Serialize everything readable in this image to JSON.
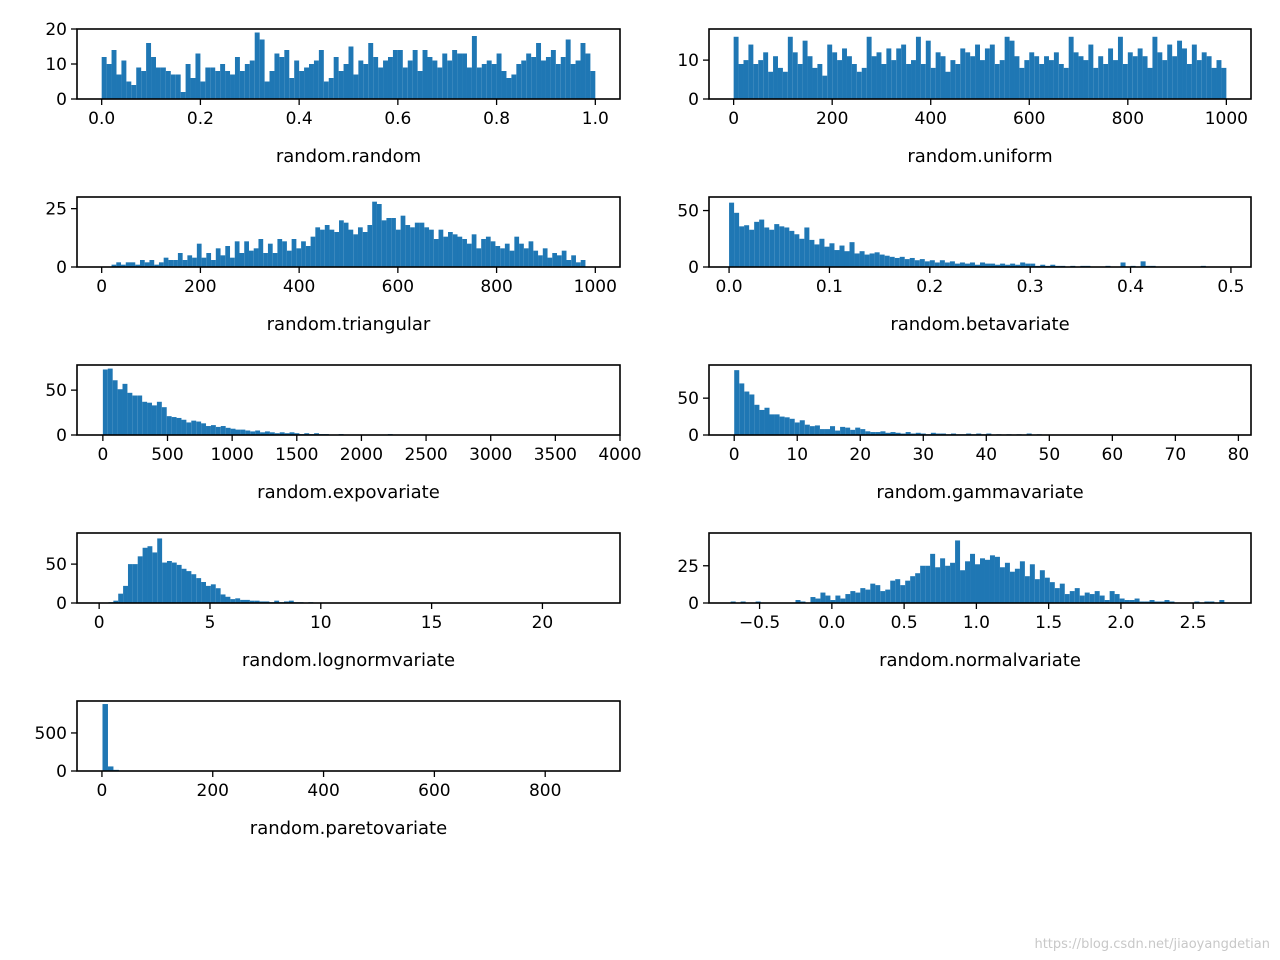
{
  "figure": {
    "watermark": "https://blog.csdn.net/jiaoyangdetian",
    "bar_color": "#1f77b4"
  },
  "chart_data": [
    {
      "type": "bar",
      "xlabel": "random.random",
      "xlim": [
        -0.05,
        1.05
      ],
      "ylim": [
        0,
        20
      ],
      "xticks": [
        0.0,
        0.2,
        0.4,
        0.6,
        0.8,
        1.0
      ],
      "xtick_labels": [
        "0.0",
        "0.2",
        "0.4",
        "0.6",
        "0.8",
        "1.0"
      ],
      "yticks": [
        0,
        10,
        20
      ],
      "ytick_labels": [
        "0",
        "10",
        "20"
      ],
      "bin_range": [
        0.0,
        1.0
      ],
      "counts": [
        12,
        10,
        14,
        7,
        11,
        5,
        4,
        9,
        8,
        16,
        12,
        9,
        9,
        8,
        7,
        7,
        2,
        10,
        6,
        13,
        5,
        9,
        9,
        8,
        10,
        8,
        7,
        12,
        8,
        10,
        11,
        19,
        17,
        5,
        8,
        13,
        12,
        14,
        6,
        11,
        8,
        9,
        10,
        11,
        14,
        5,
        6,
        12,
        8,
        10,
        15,
        7,
        11,
        10,
        16,
        12,
        9,
        11,
        12,
        14,
        14,
        9,
        11,
        14,
        8,
        14,
        12,
        11,
        9,
        13,
        11,
        14,
        13,
        13,
        9,
        18,
        9,
        10,
        11,
        10,
        13,
        8,
        6,
        7,
        10,
        11,
        13,
        12,
        16,
        11,
        12,
        14,
        10,
        12,
        17,
        10,
        11,
        16,
        13,
        8
      ]
    },
    {
      "type": "bar",
      "xlabel": "random.uniform",
      "xlim": [
        -50,
        1050
      ],
      "ylim": [
        0,
        18
      ],
      "xticks": [
        0,
        200,
        400,
        600,
        800,
        1000
      ],
      "xtick_labels": [
        "0",
        "200",
        "400",
        "600",
        "800",
        "1000"
      ],
      "yticks": [
        0,
        10
      ],
      "ytick_labels": [
        "0",
        "10"
      ],
      "bin_range": [
        0,
        1000
      ],
      "counts": [
        16,
        9,
        10,
        14,
        9,
        10,
        12,
        7,
        11,
        8,
        7,
        16,
        12,
        9,
        15,
        11,
        8,
        9,
        6,
        14,
        12,
        10,
        13,
        11,
        9,
        7,
        8,
        16,
        11,
        12,
        9,
        13,
        10,
        13,
        14,
        9,
        10,
        16,
        9,
        15,
        8,
        12,
        11,
        7,
        10,
        9,
        13,
        12,
        11,
        14,
        10,
        13,
        14,
        9,
        10,
        16,
        15,
        11,
        8,
        10,
        12,
        11,
        9,
        11,
        10,
        12,
        9,
        8,
        16,
        12,
        11,
        10,
        14,
        8,
        11,
        9,
        13,
        10,
        16,
        9,
        12,
        11,
        13,
        11,
        8,
        16,
        12,
        10,
        14,
        11,
        15,
        13,
        9,
        14,
        10,
        12,
        11,
        8,
        10,
        8
      ]
    },
    {
      "type": "bar",
      "xlabel": "random.triangular",
      "xlim": [
        -50,
        1050
      ],
      "ylim": [
        0,
        30
      ],
      "xticks": [
        0,
        200,
        400,
        600,
        800,
        1000
      ],
      "xtick_labels": [
        "0",
        "200",
        "400",
        "600",
        "800",
        "1000"
      ],
      "yticks": [
        0,
        25
      ],
      "ytick_labels": [
        "0",
        "25"
      ],
      "bin_range": [
        20,
        980
      ],
      "counts": [
        1,
        2,
        1,
        2,
        2,
        1,
        3,
        2,
        3,
        1,
        2,
        4,
        3,
        3,
        6,
        3,
        5,
        4,
        10,
        4,
        6,
        3,
        8,
        5,
        9,
        4,
        11,
        6,
        11,
        7,
        8,
        12,
        6,
        10,
        6,
        12,
        11,
        7,
        12,
        8,
        11,
        9,
        13,
        17,
        16,
        18,
        16,
        15,
        20,
        19,
        16,
        14,
        17,
        15,
        18,
        28,
        27,
        20,
        21,
        21,
        16,
        22,
        18,
        17,
        19,
        19,
        17,
        16,
        12,
        16,
        13,
        15,
        14,
        13,
        12,
        10,
        14,
        8,
        12,
        13,
        11,
        9,
        8,
        10,
        7,
        13,
        10,
        8,
        11,
        7,
        5,
        8,
        4,
        6,
        5,
        7,
        3,
        5,
        2,
        3
      ]
    },
    {
      "type": "bar",
      "xlabel": "random.betavariate",
      "xlim": [
        -0.02,
        0.52
      ],
      "ylim": [
        0,
        62
      ],
      "xticks": [
        0.0,
        0.1,
        0.2,
        0.3,
        0.4,
        0.5
      ],
      "xtick_labels": [
        "0.0",
        "0.1",
        "0.2",
        "0.3",
        "0.4",
        "0.5"
      ],
      "yticks": [
        0,
        50
      ],
      "ytick_labels": [
        "0",
        "50"
      ],
      "bin_range": [
        0.0,
        0.5
      ],
      "counts": [
        57,
        48,
        36,
        37,
        33,
        40,
        42,
        35,
        33,
        38,
        36,
        35,
        32,
        29,
        25,
        35,
        24,
        20,
        25,
        18,
        21,
        15,
        19,
        14,
        22,
        12,
        14,
        11,
        12,
        13,
        11,
        10,
        9,
        8,
        9,
        7,
        8,
        6,
        7,
        5,
        6,
        4,
        6,
        4,
        5,
        3,
        4,
        3,
        4,
        2,
        4,
        3,
        3,
        2,
        3,
        2,
        3,
        2,
        4,
        3,
        3,
        1,
        2,
        1,
        2,
        1,
        1,
        0,
        1,
        0,
        1,
        1,
        0,
        0,
        0,
        1,
        0,
        0,
        4,
        0,
        1,
        0,
        5,
        1,
        1,
        0,
        0,
        0,
        0,
        0,
        0,
        0,
        0,
        0,
        1,
        0,
        0,
        0,
        0,
        0
      ]
    },
    {
      "type": "bar",
      "xlabel": "random.expovariate",
      "xlim": [
        -200,
        4000
      ],
      "ylim": [
        0,
        78
      ],
      "xticks": [
        0,
        500,
        1000,
        1500,
        2000,
        2500,
        3000,
        3500,
        4000
      ],
      "xtick_labels": [
        "0",
        "500",
        "1000",
        "1500",
        "2000",
        "2500",
        "3000",
        "3500",
        "4000"
      ],
      "yticks": [
        0,
        50
      ],
      "ytick_labels": [
        "0",
        "50"
      ],
      "bin_range": [
        0,
        3800
      ],
      "counts": [
        73,
        74,
        61,
        51,
        57,
        47,
        44,
        44,
        37,
        36,
        33,
        37,
        31,
        21,
        20,
        19,
        17,
        14,
        16,
        15,
        13,
        10,
        11,
        9,
        10,
        8,
        7,
        6,
        6,
        5,
        4,
        5,
        3,
        4,
        3,
        2,
        3,
        2,
        3,
        2,
        1,
        2,
        1,
        2,
        1,
        1,
        0,
        0,
        1,
        0,
        0,
        0,
        0,
        0,
        0,
        0,
        0,
        0,
        1,
        0,
        0,
        0,
        0,
        0,
        0,
        0,
        0,
        0,
        0,
        0,
        0,
        0,
        0,
        0,
        0,
        0,
        0,
        0,
        0,
        0,
        0,
        0,
        0,
        0,
        0,
        0,
        0,
        0,
        0,
        0,
        0,
        0,
        0,
        0,
        0,
        0,
        0,
        0,
        0,
        0
      ]
    },
    {
      "type": "bar",
      "xlabel": "random.gammavariate",
      "xlim": [
        -4,
        82
      ],
      "ylim": [
        0,
        95
      ],
      "xticks": [
        0,
        10,
        20,
        30,
        40,
        50,
        60,
        70,
        80
      ],
      "xtick_labels": [
        "0",
        "10",
        "20",
        "30",
        "40",
        "50",
        "60",
        "70",
        "80"
      ],
      "yticks": [
        0,
        50
      ],
      "ytick_labels": [
        "0",
        "50"
      ],
      "bin_range": [
        0,
        80
      ],
      "counts": [
        88,
        70,
        59,
        55,
        41,
        34,
        37,
        28,
        28,
        25,
        24,
        22,
        17,
        20,
        14,
        12,
        13,
        8,
        8,
        12,
        6,
        11,
        10,
        7,
        10,
        8,
        5,
        4,
        4,
        5,
        3,
        4,
        3,
        2,
        4,
        2,
        3,
        2,
        1,
        3,
        2,
        2,
        1,
        2,
        1,
        1,
        2,
        1,
        2,
        1,
        2,
        0,
        1,
        0,
        1,
        0,
        1,
        0,
        2,
        0,
        1,
        0,
        0,
        0,
        0,
        0,
        0,
        0,
        0,
        0,
        0,
        0,
        0,
        0,
        0,
        0,
        0,
        0,
        0,
        0,
        0,
        0,
        0,
        0,
        0,
        0,
        0,
        0,
        0,
        0,
        0,
        0,
        0,
        0,
        0,
        0,
        0,
        0,
        0,
        0
      ]
    },
    {
      "type": "bar",
      "xlabel": "random.lognormvariate",
      "xlim": [
        -1,
        23.5
      ],
      "ylim": [
        0,
        90
      ],
      "xticks": [
        0,
        5,
        10,
        15,
        20
      ],
      "xtick_labels": [
        "0",
        "5",
        "10",
        "15",
        "20"
      ],
      "yticks": [
        0,
        50
      ],
      "ytick_labels": [
        "0",
        "50"
      ],
      "bin_range": [
        0.2,
        22.2
      ],
      "counts": [
        0,
        1,
        3,
        12,
        22,
        50,
        50,
        60,
        71,
        73,
        65,
        83,
        52,
        54,
        52,
        49,
        44,
        41,
        37,
        32,
        27,
        22,
        24,
        19,
        11,
        8,
        5,
        6,
        4,
        4,
        3,
        3,
        2,
        2,
        1,
        3,
        1,
        2,
        3,
        1,
        1,
        0,
        1,
        0,
        0,
        0,
        0,
        0,
        0,
        0,
        0,
        0,
        0,
        0,
        0,
        0,
        0,
        0,
        0,
        0,
        0,
        0,
        0,
        0,
        0,
        0,
        0,
        0,
        0,
        0,
        0,
        0,
        0,
        0,
        0,
        0,
        0,
        0,
        0,
        0,
        0,
        0,
        0,
        0,
        0,
        0,
        0,
        0,
        0,
        0,
        0,
        0,
        0,
        0,
        0,
        0,
        0,
        0,
        0,
        0
      ]
    },
    {
      "type": "bar",
      "xlabel": "random.normalvariate",
      "xlim": [
        -0.85,
        2.9
      ],
      "ylim": [
        0,
        47
      ],
      "xticks": [
        -0.5,
        0.0,
        0.5,
        1.0,
        1.5,
        2.0,
        2.5
      ],
      "xtick_labels": [
        "−0.5",
        "0.0",
        "0.5",
        "1.0",
        "1.5",
        "2.0",
        "2.5"
      ],
      "yticks": [
        0,
        25
      ],
      "ytick_labels": [
        "0",
        "25"
      ],
      "bin_range": [
        -0.7,
        2.75
      ],
      "counts": [
        1,
        0,
        1,
        0,
        0,
        1,
        0,
        0,
        0,
        0,
        0,
        0,
        0,
        2,
        1,
        0,
        4,
        3,
        7,
        5,
        2,
        5,
        3,
        6,
        8,
        7,
        10,
        9,
        13,
        12,
        8,
        9,
        15,
        16,
        12,
        15,
        18,
        20,
        25,
        25,
        33,
        24,
        30,
        25,
        27,
        42,
        22,
        28,
        33,
        26,
        30,
        29,
        32,
        31,
        24,
        27,
        21,
        23,
        28,
        18,
        26,
        16,
        22,
        17,
        14,
        10,
        13,
        6,
        8,
        10,
        5,
        7,
        6,
        8,
        5,
        2,
        8,
        6,
        3,
        2,
        2,
        3,
        1,
        1,
        2,
        1,
        1,
        2,
        1,
        0,
        0,
        0,
        0,
        1,
        0,
        1,
        1,
        0,
        2,
        0
      ]
    },
    {
      "type": "bar",
      "xlabel": "random.paretovariate",
      "xlim": [
        -45,
        935
      ],
      "ylim": [
        0,
        920
      ],
      "xticks": [
        0,
        200,
        400,
        600,
        800
      ],
      "xtick_labels": [
        "0",
        "200",
        "400",
        "600",
        "800"
      ],
      "yticks": [
        0,
        500
      ],
      "ytick_labels": [
        "0",
        "500"
      ],
      "bin_range": [
        1,
        891
      ],
      "counts": [
        880,
        60,
        15,
        5,
        4,
        3,
        2,
        1,
        1,
        1,
        0,
        0,
        0,
        0,
        0,
        0,
        0,
        0,
        0,
        0,
        0,
        0,
        0,
        0,
        0,
        0,
        0,
        0,
        0,
        0,
        0,
        0,
        0,
        0,
        0,
        0,
        0,
        0,
        0,
        0,
        0,
        0,
        0,
        0,
        0,
        0,
        0,
        0,
        0,
        0,
        0,
        0,
        0,
        0,
        0,
        0,
        0,
        0,
        0,
        0,
        0,
        0,
        0,
        0,
        0,
        0,
        0,
        0,
        0,
        0,
        0,
        0,
        0,
        0,
        0,
        0,
        0,
        0,
        0,
        0,
        0,
        0,
        0,
        0,
        0,
        0,
        0,
        0,
        0,
        1
      ]
    }
  ]
}
